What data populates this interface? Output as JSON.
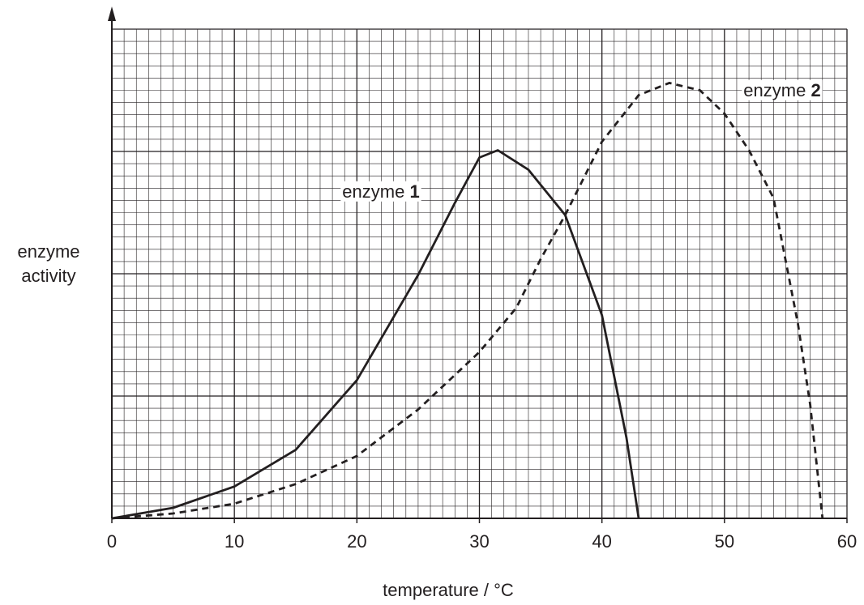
{
  "chart_data": {
    "type": "line",
    "x_label": "temperature / °C",
    "y_label": "enzyme activity",
    "xlim": [
      0,
      60
    ],
    "xticks": [
      0,
      10,
      20,
      30,
      40,
      50,
      60
    ],
    "ylim": [
      0,
      40
    ],
    "grid": true,
    "series": [
      {
        "name": "enzyme 1",
        "color": "#231f20",
        "line_style": "solid",
        "x": [
          0,
          5,
          10,
          15,
          20,
          25,
          28,
          30,
          31.5,
          34,
          37,
          40,
          42,
          43
        ],
        "values": [
          0,
          0.86,
          2.6,
          5.6,
          11.3,
          19.9,
          25.8,
          29.5,
          30.1,
          28.5,
          24.8,
          16.6,
          6.6,
          0
        ]
      },
      {
        "name": "enzyme 2",
        "color": "#231f20",
        "line_style": "dashed",
        "x": [
          0,
          5,
          10,
          15,
          20,
          25,
          30,
          33,
          35,
          37,
          40,
          43,
          45.5,
          48,
          50,
          52,
          54,
          56,
          57,
          58
        ],
        "values": [
          0,
          0.4,
          1.2,
          2.8,
          5.1,
          8.9,
          13.6,
          17.2,
          21.2,
          24.8,
          30.8,
          34.6,
          35.6,
          35,
          33.1,
          30.1,
          26.2,
          15.9,
          9.3,
          0
        ]
      }
    ]
  }
}
